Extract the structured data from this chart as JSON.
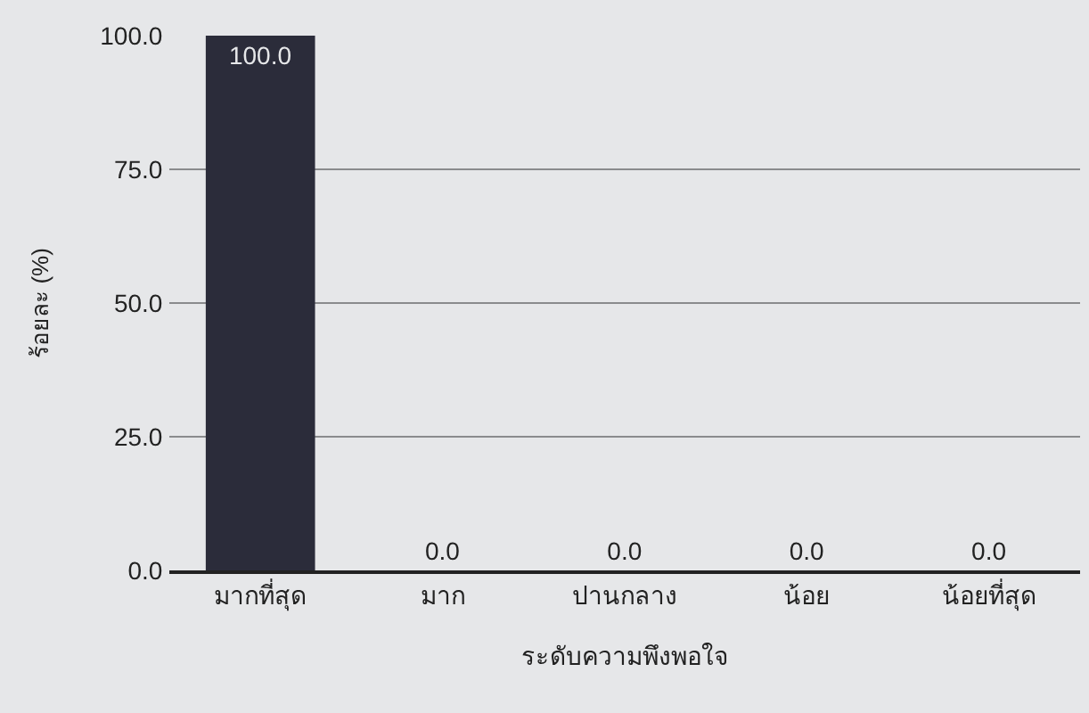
{
  "chart_data": {
    "type": "bar",
    "xlabel": "ระดับความพึงพอใจ",
    "ylabel": "ร้อยละ (%)",
    "categories": [
      "มากที่สุด",
      "มาก",
      "ปานกลาง",
      "น้อย",
      "น้อยที่สุด"
    ],
    "values": [
      100,
      0,
      0,
      0,
      0
    ],
    "color": "#2b2c3a",
    "value_labels": [
      "100.0",
      "0.0",
      "0.0",
      "0.0",
      "0.0"
    ],
    "ylim": [
      0,
      100
    ],
    "yticks": [
      {
        "value": 0,
        "label": "0.0"
      },
      {
        "value": 25,
        "label": "25.0"
      },
      {
        "value": 50,
        "label": "50.0"
      },
      {
        "value": 75,
        "label": "75.0"
      },
      {
        "value": 100,
        "label": "100.0"
      }
    ],
    "grid": "y"
  }
}
